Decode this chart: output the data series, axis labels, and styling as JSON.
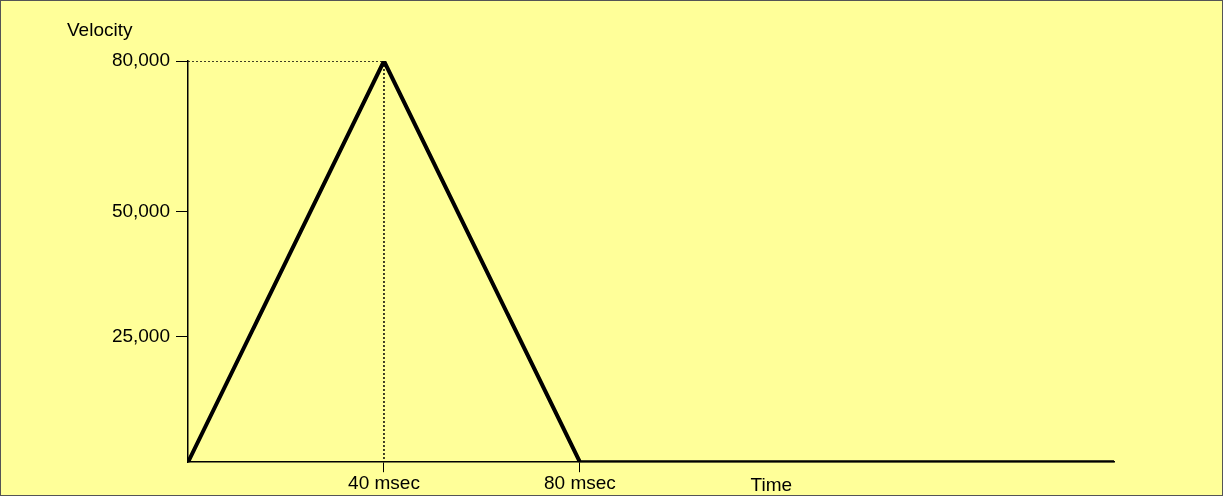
{
  "chart_data": {
    "type": "line",
    "xlabel": "Time",
    "ylabel": "Velocity",
    "x": [
      0,
      40,
      40,
      80,
      189
    ],
    "series": [
      {
        "color": "#000000",
        "values": [
          0,
          80000,
          80000,
          0,
          0
        ]
      },
      {
        "color": "#000000",
        "values": [
          80000,
          80000,
          0,
          null,
          null
        ],
        "line_style": "dotted"
      }
    ],
    "xlim": [
      0,
      189
    ],
    "xticks": [
      {
        "value": 40,
        "label": "40 msec"
      },
      {
        "value": 80,
        "label": "80 msec"
      }
    ],
    "ylim": [
      0,
      80000
    ],
    "yticks": [
      {
        "value": 25000,
        "label": "25,000"
      },
      {
        "value": 50000,
        "label": "50,000"
      },
      {
        "value": 80000,
        "label": "80,000"
      }
    ],
    "grid": false,
    "legend": false,
    "marker": "none"
  }
}
